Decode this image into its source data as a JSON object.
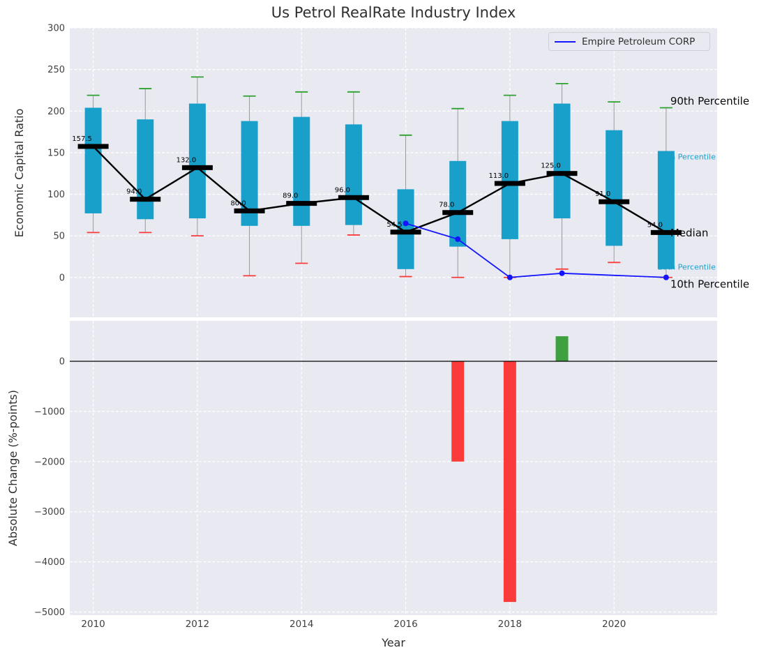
{
  "title": "Us Petrol RealRate Industry Index",
  "legend": {
    "label": "Empire Petroleum CORP"
  },
  "axes": {
    "xlabel": "Year",
    "xticks": [
      2010,
      2012,
      2014,
      2016,
      2018,
      2020
    ],
    "xlim": [
      2009.55,
      2021.98
    ],
    "top": {
      "ylabel": "Economic Capital Ratio",
      "yticks": [
        300,
        250,
        200,
        150,
        100,
        50,
        0
      ],
      "ylim": [
        -48,
        300
      ]
    },
    "bottom": {
      "ylabel": "Absolute Change (%-points)",
      "yticks": [
        0,
        -1000,
        -2000,
        -3000,
        -4000,
        -5000
      ],
      "ylim": [
        -5063,
        807
      ]
    }
  },
  "colors": {
    "axes_bg": "#e9eaf1",
    "grid": "#ffffff",
    "box": "#18a0cb",
    "cap_high": "#2ca02c",
    "cap_low": "#fb3a3a",
    "whisker": "#999999",
    "median": "#000000",
    "empire": "#1414ff",
    "tick_text": "#3f3f3f"
  },
  "chart_data": [
    {
      "type": "box",
      "title": "Us Petrol RealRate Industry Index",
      "xlabel": "Year",
      "ylabel": "Economic Capital Ratio",
      "grid": true,
      "legend_position": "upper right",
      "stats": [
        {
          "year": 2010,
          "p10": 54,
          "p25": 77,
          "median": 157.5,
          "p75": 204,
          "p90": 219,
          "label": "157.5"
        },
        {
          "year": 2011,
          "p10": 54,
          "p25": 70,
          "median": 94,
          "p75": 190,
          "p90": 227,
          "label": "94.0"
        },
        {
          "year": 2012,
          "p10": 50,
          "p25": 71,
          "median": 132,
          "p75": 209,
          "p90": 241,
          "label": "132.0"
        },
        {
          "year": 2013,
          "p10": 2,
          "p25": 62,
          "median": 80,
          "p75": 188,
          "p90": 218,
          "label": "80.0"
        },
        {
          "year": 2014,
          "p10": 17,
          "p25": 62,
          "median": 89,
          "p75": 193,
          "p90": 223,
          "label": "89.0"
        },
        {
          "year": 2015,
          "p10": 51,
          "p25": 63,
          "median": 96,
          "p75": 184,
          "p90": 223,
          "label": "96.0"
        },
        {
          "year": 2016,
          "p10": 1,
          "p25": 10,
          "median": 54.5,
          "p75": 106,
          "p90": 171,
          "label": "54.5"
        },
        {
          "year": 2017,
          "p10": 0,
          "p25": 37,
          "median": 78,
          "p75": 140,
          "p90": 203,
          "label": "78.0"
        },
        {
          "year": 2018,
          "p10": 0,
          "p25": 46,
          "median": 113,
          "p75": 188,
          "p90": 219,
          "label": "113.0"
        },
        {
          "year": 2019,
          "p10": 10,
          "p25": 71,
          "median": 125,
          "p75": 209,
          "p90": 233,
          "label": "125.0"
        },
        {
          "year": 2020,
          "p10": 18,
          "p25": 38,
          "median": 91,
          "p75": 177,
          "p90": 211,
          "label": "91.0"
        },
        {
          "year": 2021,
          "p10": 0,
          "p25": 10,
          "median": 54,
          "p75": 152,
          "p90": 204,
          "label": "54.0"
        }
      ],
      "empire_series": {
        "name": "Empire Petroleum CORP",
        "points": [
          {
            "year": 2016,
            "value": 65
          },
          {
            "year": 2017,
            "value": 46
          },
          {
            "year": 2018,
            "value": 0
          },
          {
            "year": 2019,
            "value": 5
          },
          {
            "year": 2021,
            "value": 0
          }
        ]
      },
      "annotations": [
        {
          "text": "90th Percentile",
          "value": 212,
          "color": "#0a0a0a",
          "size": 15,
          "dx": 6
        },
        {
          "text": "75th Percentile",
          "value": 145,
          "color": "#18a0cb",
          "size": 11,
          "dx": -12
        },
        {
          "text": "Median",
          "value": 53.5,
          "color": "#0a0a0a",
          "size": 15,
          "dx": 6
        },
        {
          "text": "25th Percentile",
          "value": 12.5,
          "color": "#18a0cb",
          "size": 11,
          "dx": -12
        },
        {
          "text": "10th Percentile",
          "value": -8,
          "color": "#0a0a0a",
          "size": 15,
          "dx": 6
        }
      ]
    },
    {
      "type": "bar",
      "ylabel": "Absolute Change (%-points)",
      "ylim": [
        -5063,
        807
      ],
      "positive_color": "#3fa03f",
      "negative_color": "#fb3a3a",
      "bars": [
        {
          "year": 2017,
          "value": -2000
        },
        {
          "year": 2018,
          "value": -4800
        },
        {
          "year": 2019,
          "value": 500
        }
      ]
    }
  ]
}
